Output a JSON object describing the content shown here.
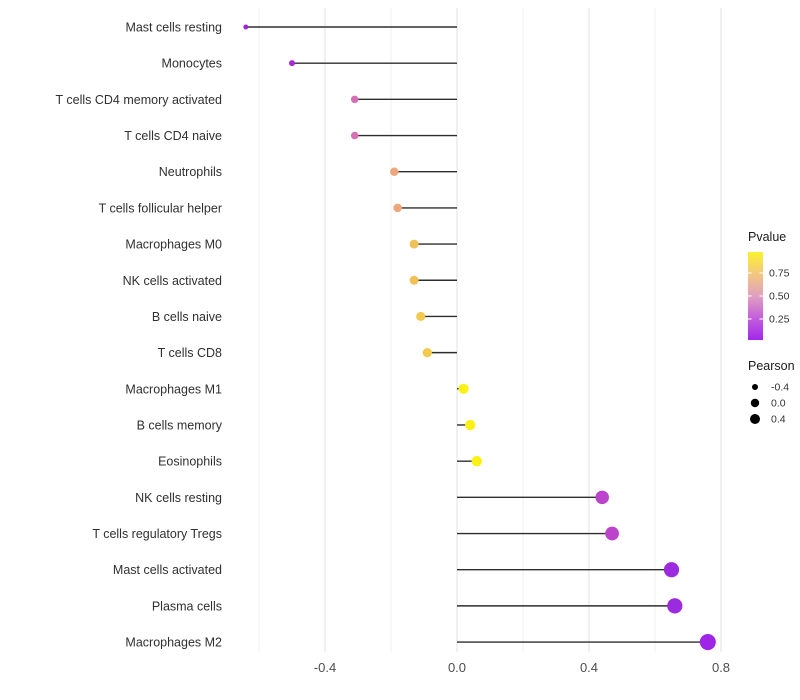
{
  "chart_data": {
    "type": "lollipop",
    "title": "",
    "xlabel": "",
    "ylabel": "",
    "xlim": [
      -0.685,
      0.85
    ],
    "baseline_x": 0.0,
    "grid": "vertical-only, light gray on white, no axis lines",
    "x_major_ticks": [
      -0.4,
      0.0,
      0.4,
      0.8
    ],
    "x_tick_labels": [
      "-0.4",
      "0.0",
      "0.4",
      "0.8"
    ],
    "x_minor_ticks": [
      -0.6,
      -0.2,
      0.2,
      0.6
    ],
    "points": [
      {
        "label": "Mast cells resting",
        "pearson": -0.64,
        "pvalue_est": 0.03,
        "color": "#9A25DD"
      },
      {
        "label": "Monocytes",
        "pearson": -0.5,
        "pvalue_est": 0.07,
        "color": "#A52BD3"
      },
      {
        "label": "T cells CD4 memory activated",
        "pearson": -0.31,
        "pvalue_est": 0.33,
        "color": "#D56EB6"
      },
      {
        "label": "T cells CD4 naive",
        "pearson": -0.31,
        "pvalue_est": 0.34,
        "color": "#D66FB5"
      },
      {
        "label": "Neutrophils",
        "pearson": -0.19,
        "pvalue_est": 0.56,
        "color": "#ECA87C"
      },
      {
        "label": "T cells follicular helper",
        "pearson": -0.18,
        "pvalue_est": 0.57,
        "color": "#ECA87C"
      },
      {
        "label": "Macrophages M0",
        "pearson": -0.13,
        "pvalue_est": 0.7,
        "color": "#EFC156"
      },
      {
        "label": "NK cells activated",
        "pearson": -0.13,
        "pvalue_est": 0.7,
        "color": "#EFC156"
      },
      {
        "label": "B cells naive",
        "pearson": -0.11,
        "pvalue_est": 0.75,
        "color": "#F1CA4E"
      },
      {
        "label": "T cells CD8",
        "pearson": -0.09,
        "pvalue_est": 0.76,
        "color": "#F1CA4E"
      },
      {
        "label": "Macrophages M1",
        "pearson": 0.02,
        "pvalue_est": 0.93,
        "color": "#FBF115"
      },
      {
        "label": "B cells memory",
        "pearson": 0.04,
        "pvalue_est": 0.92,
        "color": "#FBF115"
      },
      {
        "label": "Eosinophils",
        "pearson": 0.06,
        "pvalue_est": 0.9,
        "color": "#FBF115"
      },
      {
        "label": "NK cells resting",
        "pearson": 0.44,
        "pvalue_est": 0.17,
        "color": "#BC44CC"
      },
      {
        "label": "T cells regulatory  Tregs",
        "pearson": 0.47,
        "pvalue_est": 0.16,
        "color": "#BC44CC"
      },
      {
        "label": "Mast cells activated",
        "pearson": 0.65,
        "pvalue_est": 0.04,
        "color": "#9C2BE0"
      },
      {
        "label": "Plasma cells",
        "pearson": 0.66,
        "pvalue_est": 0.04,
        "color": "#9C2BE0"
      },
      {
        "label": "Macrophages M2",
        "pearson": 0.76,
        "pvalue_est": 0.02,
        "color": "#9F24E8"
      }
    ],
    "legend_pvalue": {
      "title": "Pvalue",
      "tick_labels": [
        "0.75",
        "0.50",
        "0.25"
      ],
      "gradient_top_to_bottom": [
        "#FBF22D",
        "#F3C77F",
        "#E0A0C0",
        "#C35FDB",
        "#A327EC"
      ],
      "range_bottom_to_top": [
        0.0,
        0.95
      ]
    },
    "legend_pearson": {
      "title": "Pearson",
      "entry_labels": [
        "-0.4",
        "0.0",
        "0.4"
      ],
      "dot_color": "#000000"
    },
    "style_colors": {
      "stem": "#2e2e2e",
      "grid_major": "#e2e2e2",
      "grid_minor": "#f0f0f0",
      "axis_tick_text": "#4d4d4d",
      "category_text": "#303030",
      "legend_title_text": "#1a1a1a",
      "background": "#ffffff"
    }
  }
}
